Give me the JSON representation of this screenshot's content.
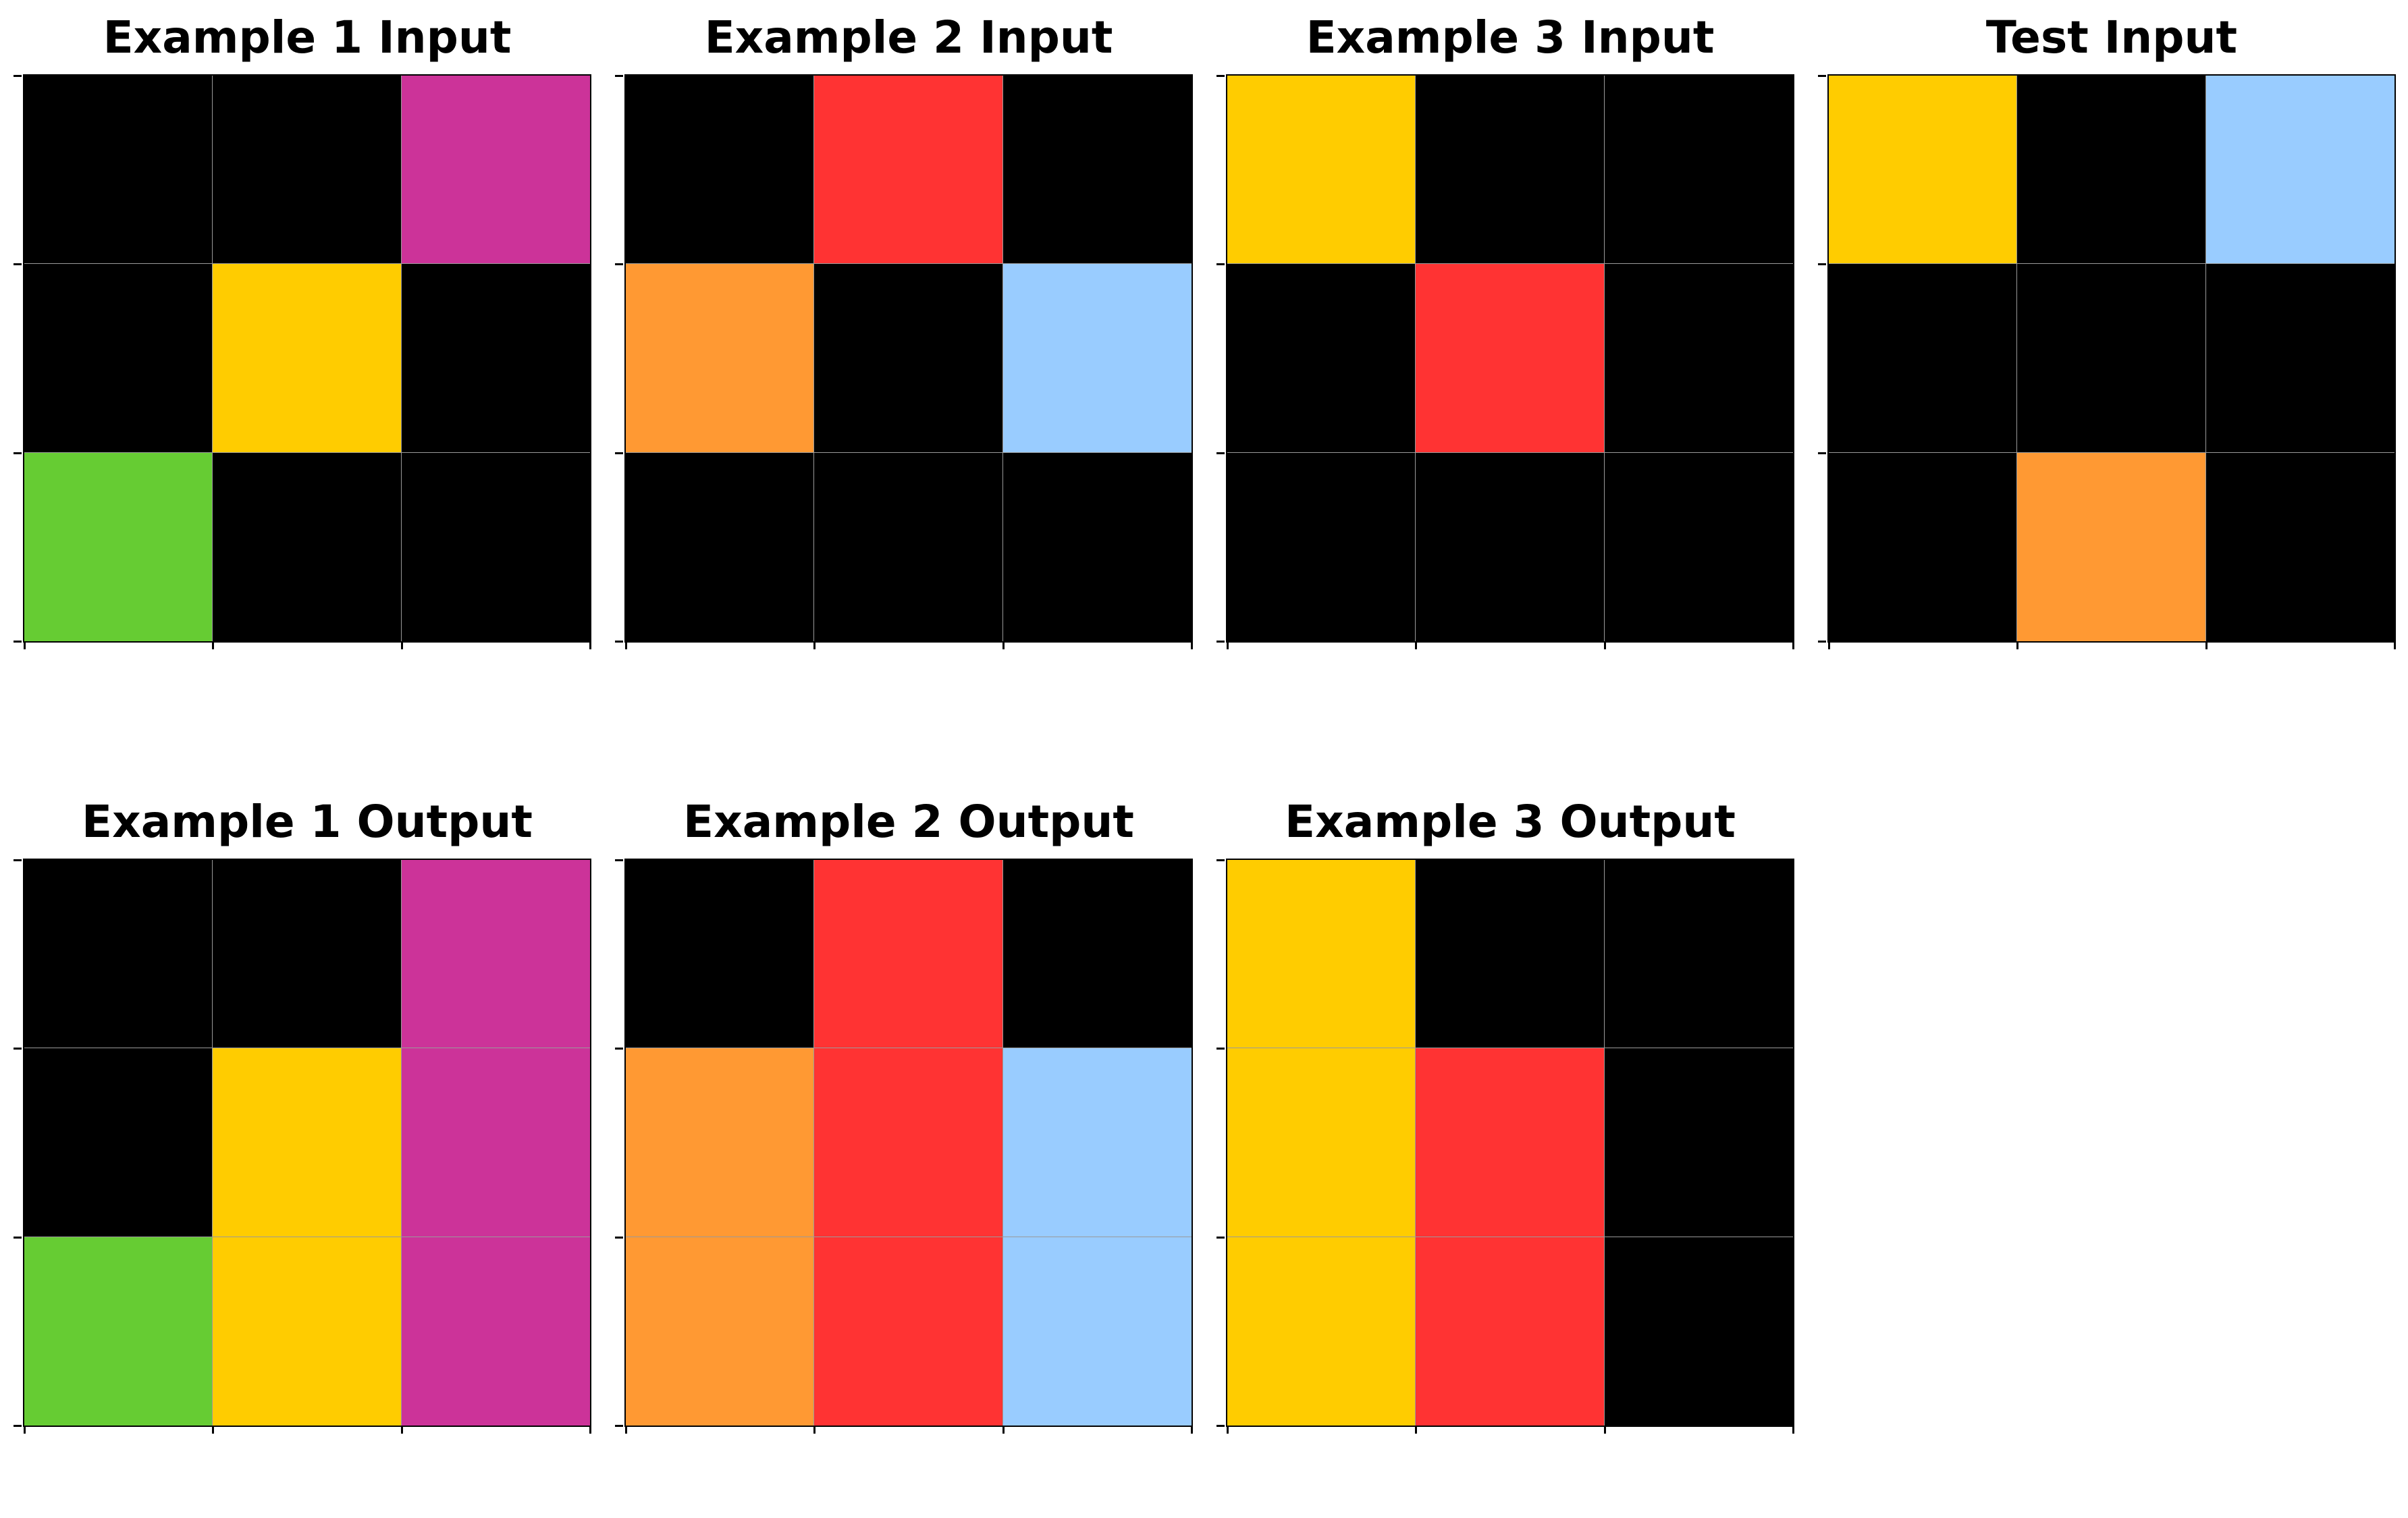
{
  "palette": {
    "0": "#000000",
    "2": "#FF3333",
    "3": "#66CC33",
    "4": "#FFCC00",
    "6": "#CC3399",
    "7": "#FF9933",
    "8": "#99CCFF"
  },
  "panels": [
    {
      "title": "Example 1 Input",
      "grid": [
        [
          0,
          0,
          6
        ],
        [
          0,
          4,
          0
        ],
        [
          3,
          0,
          0
        ]
      ]
    },
    {
      "title": "Example 2 Input",
      "grid": [
        [
          0,
          2,
          0
        ],
        [
          7,
          0,
          8
        ],
        [
          0,
          0,
          0
        ]
      ]
    },
    {
      "title": "Example 3 Input",
      "grid": [
        [
          4,
          0,
          0
        ],
        [
          0,
          2,
          0
        ],
        [
          0,
          0,
          0
        ]
      ]
    },
    {
      "title": "Test Input",
      "grid": [
        [
          4,
          0,
          8
        ],
        [
          0,
          0,
          0
        ],
        [
          0,
          7,
          0
        ]
      ]
    },
    {
      "title": "Example 1 Output",
      "grid": [
        [
          0,
          0,
          6
        ],
        [
          0,
          4,
          6
        ],
        [
          3,
          4,
          6
        ]
      ]
    },
    {
      "title": "Example 2 Output",
      "grid": [
        [
          0,
          2,
          0
        ],
        [
          7,
          2,
          8
        ],
        [
          7,
          2,
          8
        ]
      ]
    },
    {
      "title": "Example 3 Output",
      "grid": [
        [
          4,
          0,
          0
        ],
        [
          4,
          2,
          0
        ],
        [
          4,
          2,
          0
        ]
      ]
    }
  ]
}
